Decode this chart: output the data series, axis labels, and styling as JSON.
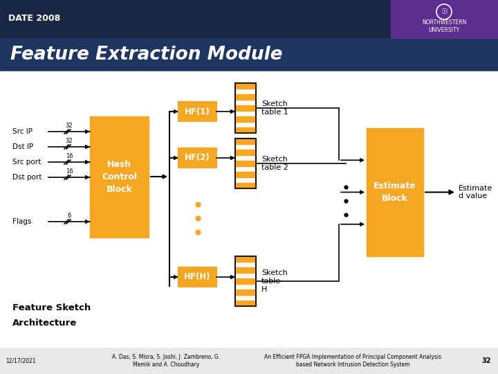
{
  "bg_color": "#1a2744",
  "header_bg": "#1a2744",
  "date_text": "DATE 2008",
  "title_text": "Feature Extraction Module",
  "title_bg": "#1e3560",
  "orange": "#f5a623",
  "white": "#ffffff",
  "black": "#000000",
  "purple": "#5b2d8e",
  "footer_bg": "#e8e8e8",
  "footer_left": "12/17/2021",
  "footer_mid": "A. Das, S. Misra, S. Joshi, J. Zambreno, G.\nMemik and A. Choudhary",
  "footer_right": "An Efficient FPGA Implementation of Principal Component Analysis\nbased Network Intrusion Detection System",
  "footer_num": "32",
  "label_src_ip": "Src IP",
  "label_dst_ip": "Dst IP",
  "label_src_port": "Src port",
  "label_dst_port": "Dst port",
  "label_flags": "Flags",
  "label_hash": "Hash\nControl\nBlock",
  "label_hf1": "HF(1)",
  "label_hf2": "HF(2)",
  "label_hfh": "HF(H)",
  "label_sketch1": "Sketch\ntable 1",
  "label_sketch2": "Sketch\ntable 2",
  "label_sketchh": "Sketch\ntable\nH",
  "label_estimate": "Estimate\nBlock",
  "label_estimated_value": "Estimate\nd value",
  "label_feature_sketch": "Feature Sketch",
  "label_architecture": "Architecture"
}
